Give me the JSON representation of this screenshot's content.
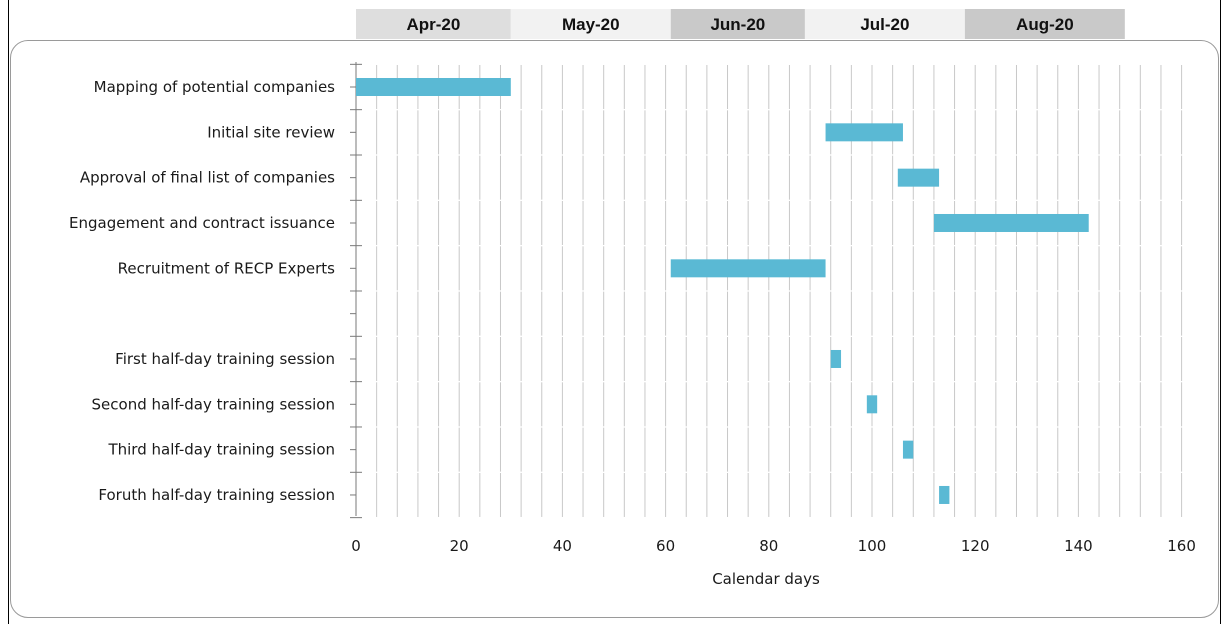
{
  "chart_data": {
    "type": "bar",
    "orientation": "horizontal-gantt",
    "title": "",
    "xlabel": "Calendar days",
    "ylabel": "",
    "xlim": [
      0,
      160
    ],
    "xticks": [
      0,
      20,
      40,
      60,
      80,
      100,
      120,
      140,
      160
    ],
    "grid": "vertical minor gridlines every 4 days",
    "bar_color": "#5ab9d4",
    "grid_color": "#c8c8c8",
    "month_header": [
      {
        "label": "Apr-20",
        "start": 0,
        "end": 30,
        "fill": "#dedede"
      },
      {
        "label": "May-20",
        "start": 30,
        "end": 61,
        "fill": "#f2f2f2"
      },
      {
        "label": "Jun-20",
        "start": 61,
        "end": 87,
        "fill": "#c9c9c9"
      },
      {
        "label": "Jul-20",
        "start": 87,
        "end": 118,
        "fill": "#f2f2f2"
      },
      {
        "label": "Aug-20",
        "start": 118,
        "end": 149,
        "fill": "#c9c9c9"
      }
    ],
    "tasks": [
      {
        "name": "Mapping of potential companies",
        "start": 0,
        "duration": 30
      },
      {
        "name": "Initial site review",
        "start": 91,
        "duration": 15
      },
      {
        "name": "Approval of final list of companies",
        "start": 105,
        "duration": 8
      },
      {
        "name": "Engagement and contract issuance",
        "start": 112,
        "duration": 30
      },
      {
        "name": "Recruitment of RECP Experts",
        "start": 61,
        "duration": 30
      },
      {
        "name": "",
        "start": null,
        "duration": null
      },
      {
        "name": "First half-day training session",
        "start": 92,
        "duration": 2
      },
      {
        "name": "Second half-day training session",
        "start": 99,
        "duration": 2
      },
      {
        "name": "Third half-day training session",
        "start": 106,
        "duration": 2
      },
      {
        "name": "Foruth half-day training session",
        "start": 113,
        "duration": 2
      }
    ]
  }
}
